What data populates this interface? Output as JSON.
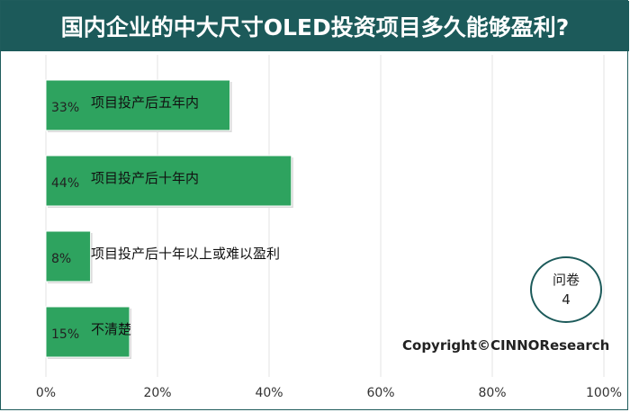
{
  "title": "国内企业的中大尺寸OLED投资项目多久能够盈利?",
  "badge": {
    "line1": "问卷",
    "line2": "4"
  },
  "copyright": "Copyright©CINNOResearch",
  "colors": {
    "bar": "#2ea35f",
    "bar_edge": "#d9d9d9",
    "header": "#1c5a5a",
    "grid": "#e3e3e3"
  },
  "chart_data": {
    "type": "bar",
    "orientation": "horizontal",
    "categories": [
      "项目投产后五年内",
      "项目投产后十年内",
      "项目投产后十年以上或难以盈利",
      "不清楚"
    ],
    "values": [
      33,
      44,
      8,
      15
    ],
    "value_labels": [
      "33%",
      "44%",
      "8%",
      "15%"
    ],
    "xlim": [
      0,
      100
    ],
    "xticks": [
      "0%",
      "20%",
      "40%",
      "60%",
      "80%",
      "100%"
    ],
    "grid": true
  }
}
